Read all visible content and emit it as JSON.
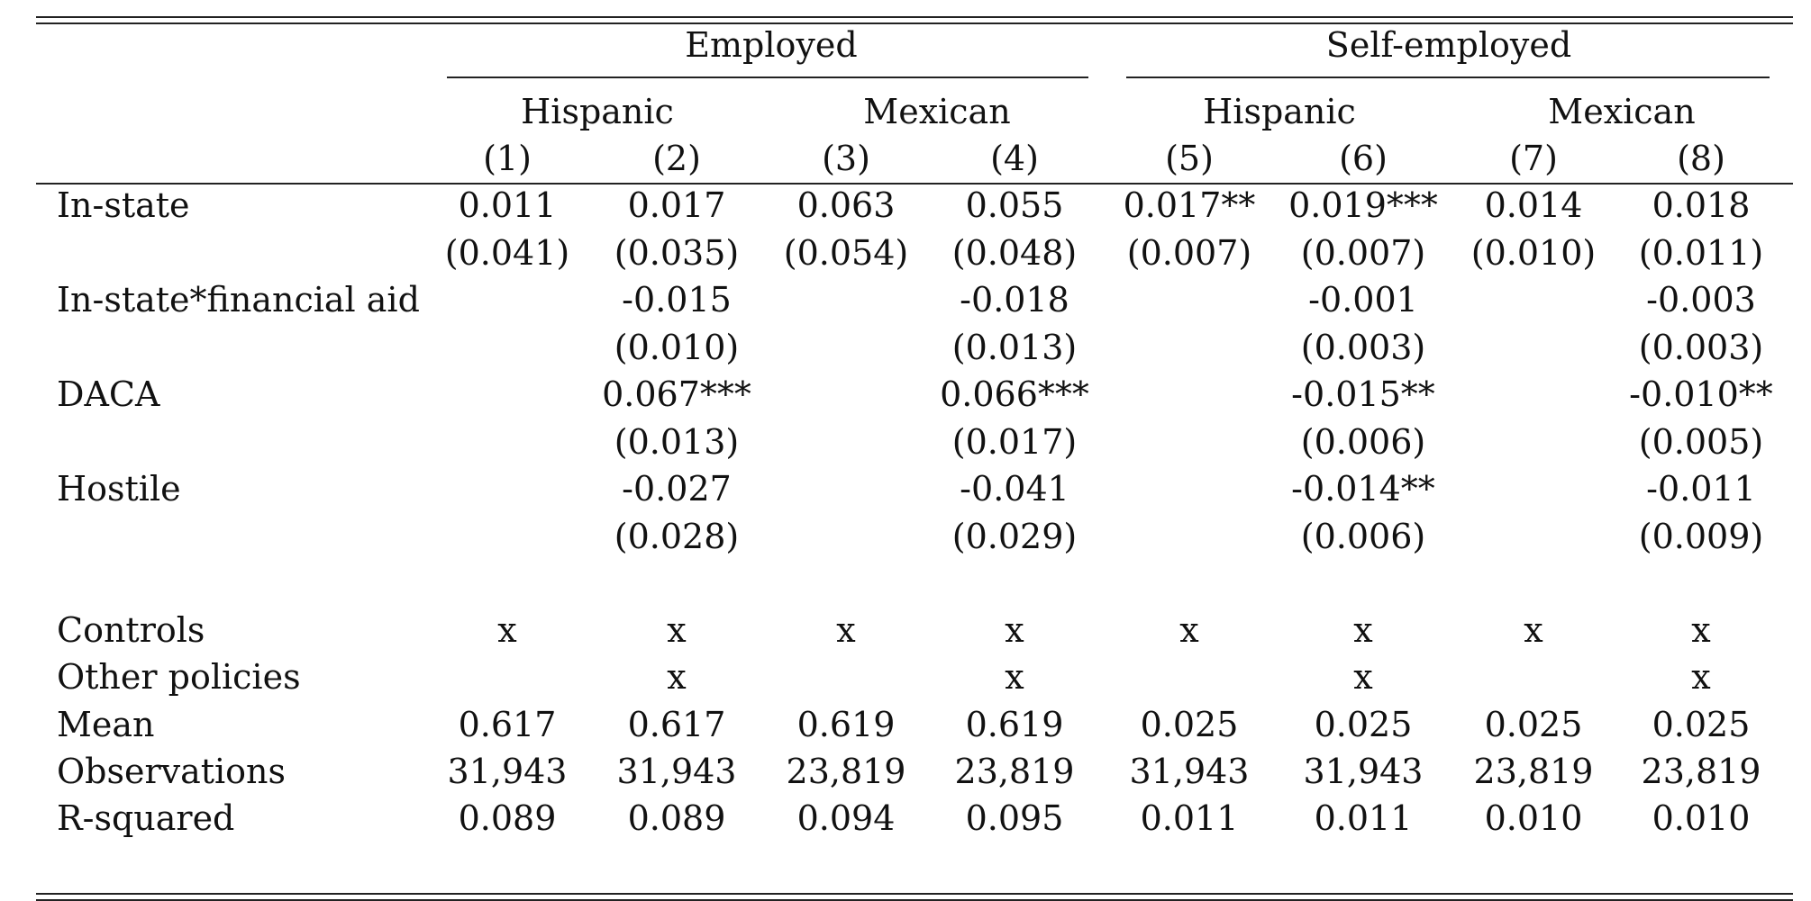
{
  "groups": [
    {
      "label": "Employed"
    },
    {
      "label": "Self-employed"
    }
  ],
  "subgroups": [
    {
      "label": "Hispanic"
    },
    {
      "label": "Mexican"
    },
    {
      "label": "Hispanic"
    },
    {
      "label": "Mexican"
    }
  ],
  "columns": [
    "(1)",
    "(2)",
    "(3)",
    "(4)",
    "(5)",
    "(6)",
    "(7)",
    "(8)"
  ],
  "rows": [
    {
      "label": "In-state",
      "cells": [
        "0.011",
        "0.017",
        "0.063",
        "0.055",
        "0.017**",
        "0.019***",
        "0.014",
        "0.018"
      ]
    },
    {
      "label": "",
      "cells": [
        "(0.041)",
        "(0.035)",
        "(0.054)",
        "(0.048)",
        "(0.007)",
        "(0.007)",
        "(0.010)",
        "(0.011)"
      ]
    },
    {
      "label": "In-state*financial aid",
      "cells": [
        "",
        "-0.015",
        "",
        "-0.018",
        "",
        "-0.001",
        "",
        "-0.003"
      ]
    },
    {
      "label": "",
      "cells": [
        "",
        "(0.010)",
        "",
        "(0.013)",
        "",
        "(0.003)",
        "",
        "(0.003)"
      ]
    },
    {
      "label": "DACA",
      "cells": [
        "",
        "0.067***",
        "",
        "0.066***",
        "",
        "-0.015**",
        "",
        "-0.010**"
      ]
    },
    {
      "label": "",
      "cells": [
        "",
        "(0.013)",
        "",
        "(0.017)",
        "",
        "(0.006)",
        "",
        "(0.005)"
      ]
    },
    {
      "label": "Hostile",
      "cells": [
        "",
        "-0.027",
        "",
        "-0.041",
        "",
        "-0.014**",
        "",
        "-0.011"
      ]
    },
    {
      "label": "",
      "cells": [
        "",
        "(0.028)",
        "",
        "(0.029)",
        "",
        "(0.006)",
        "",
        "(0.009)"
      ]
    }
  ],
  "summary_rows": [
    {
      "label": "Controls",
      "cells": [
        "x",
        "x",
        "x",
        "x",
        "x",
        "x",
        "x",
        "x"
      ]
    },
    {
      "label": "Other policies",
      "cells": [
        "",
        "x",
        "",
        "x",
        "",
        "x",
        "",
        "x"
      ]
    },
    {
      "label": "Mean",
      "cells": [
        "0.617",
        "0.617",
        "0.619",
        "0.619",
        "0.025",
        "0.025",
        "0.025",
        "0.025"
      ]
    },
    {
      "label": "Observations",
      "cells": [
        "31,943",
        "31,943",
        "23,819",
        "23,819",
        "31,943",
        "31,943",
        "23,819",
        "23,819"
      ]
    },
    {
      "label": "R-squared",
      "cells": [
        "0.089",
        "0.089",
        "0.094",
        "0.095",
        "0.011",
        "0.011",
        "0.010",
        "0.010"
      ]
    }
  ]
}
